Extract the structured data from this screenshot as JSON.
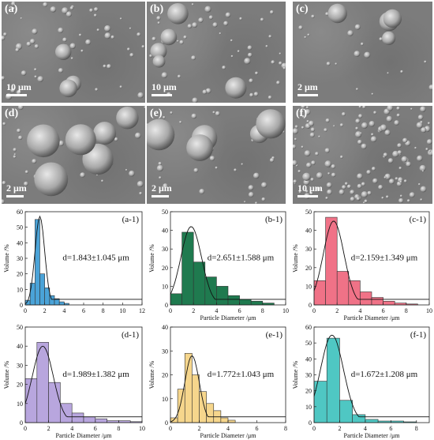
{
  "sem_panels": [
    {
      "label": "(a)",
      "scale": "10 μm"
    },
    {
      "label": "(b)",
      "scale": "10 μm"
    },
    {
      "label": "(c)",
      "scale": "2 μm"
    },
    {
      "label": "(d)",
      "scale": "2 μm"
    },
    {
      "label": "(e)",
      "scale": "2 μm"
    },
    {
      "label": "(f)",
      "scale": "10 μm"
    }
  ],
  "chart_data": [
    {
      "type": "bar",
      "panel_label": "(a-1)",
      "annotation": "d=1.843±1.045 μm",
      "bar_color": "#4aa3d8",
      "edges": [
        0,
        0.5,
        1.0,
        1.5,
        2.0,
        2.5,
        3.0,
        3.5,
        4.0,
        4.5
      ],
      "values": [
        3,
        14,
        55,
        20,
        11,
        6,
        4,
        2,
        1
      ],
      "fit_peak": [
        1.5,
        57
      ],
      "xlim": [
        0,
        12
      ],
      "ylim": [
        0,
        60
      ],
      "xticks": [
        0,
        2,
        4,
        6,
        8,
        10,
        12
      ],
      "yticks": [
        0,
        10,
        20,
        30,
        40,
        50,
        60
      ],
      "xlabel": "",
      "ylabel": "Volume /%"
    },
    {
      "type": "bar",
      "panel_label": "(b-1)",
      "annotation": "d=2.651±1.588 μm",
      "bar_color": "#1f7a4f",
      "edges": [
        0,
        1,
        2,
        3,
        4,
        5,
        6,
        7,
        8,
        9
      ],
      "values": [
        6,
        39,
        23,
        15,
        10,
        5,
        3,
        2,
        1
      ],
      "fit_peak": [
        1.8,
        42
      ],
      "xlim": [
        0,
        10
      ],
      "ylim": [
        0,
        50
      ],
      "xticks": [
        0,
        2,
        4,
        6,
        8,
        10
      ],
      "yticks": [
        0,
        10,
        20,
        30,
        40,
        50
      ],
      "xlabel": "Particle Diameter /μm",
      "ylabel": "Volume /%"
    },
    {
      "type": "bar",
      "panel_label": "(c-1)",
      "annotation": "d=2.159±1.349 μm",
      "bar_color": "#f07287",
      "edges": [
        0,
        1,
        2,
        3,
        4,
        5,
        6,
        7,
        8,
        9
      ],
      "values": [
        13,
        47,
        18,
        13,
        7,
        4,
        2,
        1,
        0.5
      ],
      "fit_peak": [
        1.7,
        45
      ],
      "xlim": [
        0,
        10
      ],
      "ylim": [
        0,
        50
      ],
      "xticks": [
        0,
        2,
        4,
        6,
        8,
        10
      ],
      "yticks": [
        0,
        10,
        20,
        30,
        40,
        50
      ],
      "xlabel": "Particle Diameter /μm",
      "ylabel": "Volume /%"
    },
    {
      "type": "bar",
      "panel_label": "(d-1)",
      "annotation": "d=1.989±1.382 μm",
      "bar_color": "#b8a6de",
      "edges": [
        0,
        1,
        2,
        3,
        4,
        5,
        6,
        7,
        8,
        9,
        10
      ],
      "values": [
        23,
        42,
        21,
        10,
        5,
        3,
        2,
        1,
        1,
        0.5
      ],
      "fit_peak": [
        1.5,
        40
      ],
      "xlim": [
        0,
        10
      ],
      "ylim": [
        0,
        50
      ],
      "xticks": [
        0,
        2,
        4,
        6,
        8,
        10
      ],
      "yticks": [
        0,
        10,
        20,
        30,
        40,
        50
      ],
      "xlabel": "Particle Diameter /μm",
      "ylabel": "Volume /%"
    },
    {
      "type": "bar",
      "panel_label": "(e-1)",
      "annotation": "d=1.772±1.043 μm",
      "bar_color": "#f6d68c",
      "edges": [
        0,
        0.5,
        1.0,
        1.5,
        2.0,
        2.5,
        3.0,
        3.5,
        4.0,
        4.5
      ],
      "values": [
        2,
        14,
        29,
        20,
        13,
        8,
        5,
        2,
        1
      ],
      "fit_peak": [
        1.5,
        28
      ],
      "xlim": [
        0,
        8
      ],
      "ylim": [
        0,
        40
      ],
      "xticks": [
        0,
        2,
        4,
        6,
        8
      ],
      "yticks": [
        0,
        10,
        20,
        30,
        40
      ],
      "xlabel": "Particle Diameter /μm",
      "ylabel": "Volume /%"
    },
    {
      "type": "bar",
      "panel_label": "(f-1)",
      "annotation": "d=1.672±1.208 μm",
      "bar_color": "#4fc7c3",
      "edges": [
        0,
        1,
        2,
        3,
        4,
        5,
        6,
        7,
        8
      ],
      "values": [
        26,
        53,
        14,
        5,
        2,
        1,
        1,
        0.5
      ],
      "fit_peak": [
        1.4,
        55
      ],
      "xlim": [
        0,
        9
      ],
      "ylim": [
        0,
        60
      ],
      "xticks": [
        0,
        2,
        4,
        6,
        8
      ],
      "yticks": [
        0,
        10,
        20,
        30,
        40,
        50,
        60
      ],
      "xlabel": "Particle Diameter /μm",
      "ylabel": "Volume /%"
    }
  ]
}
